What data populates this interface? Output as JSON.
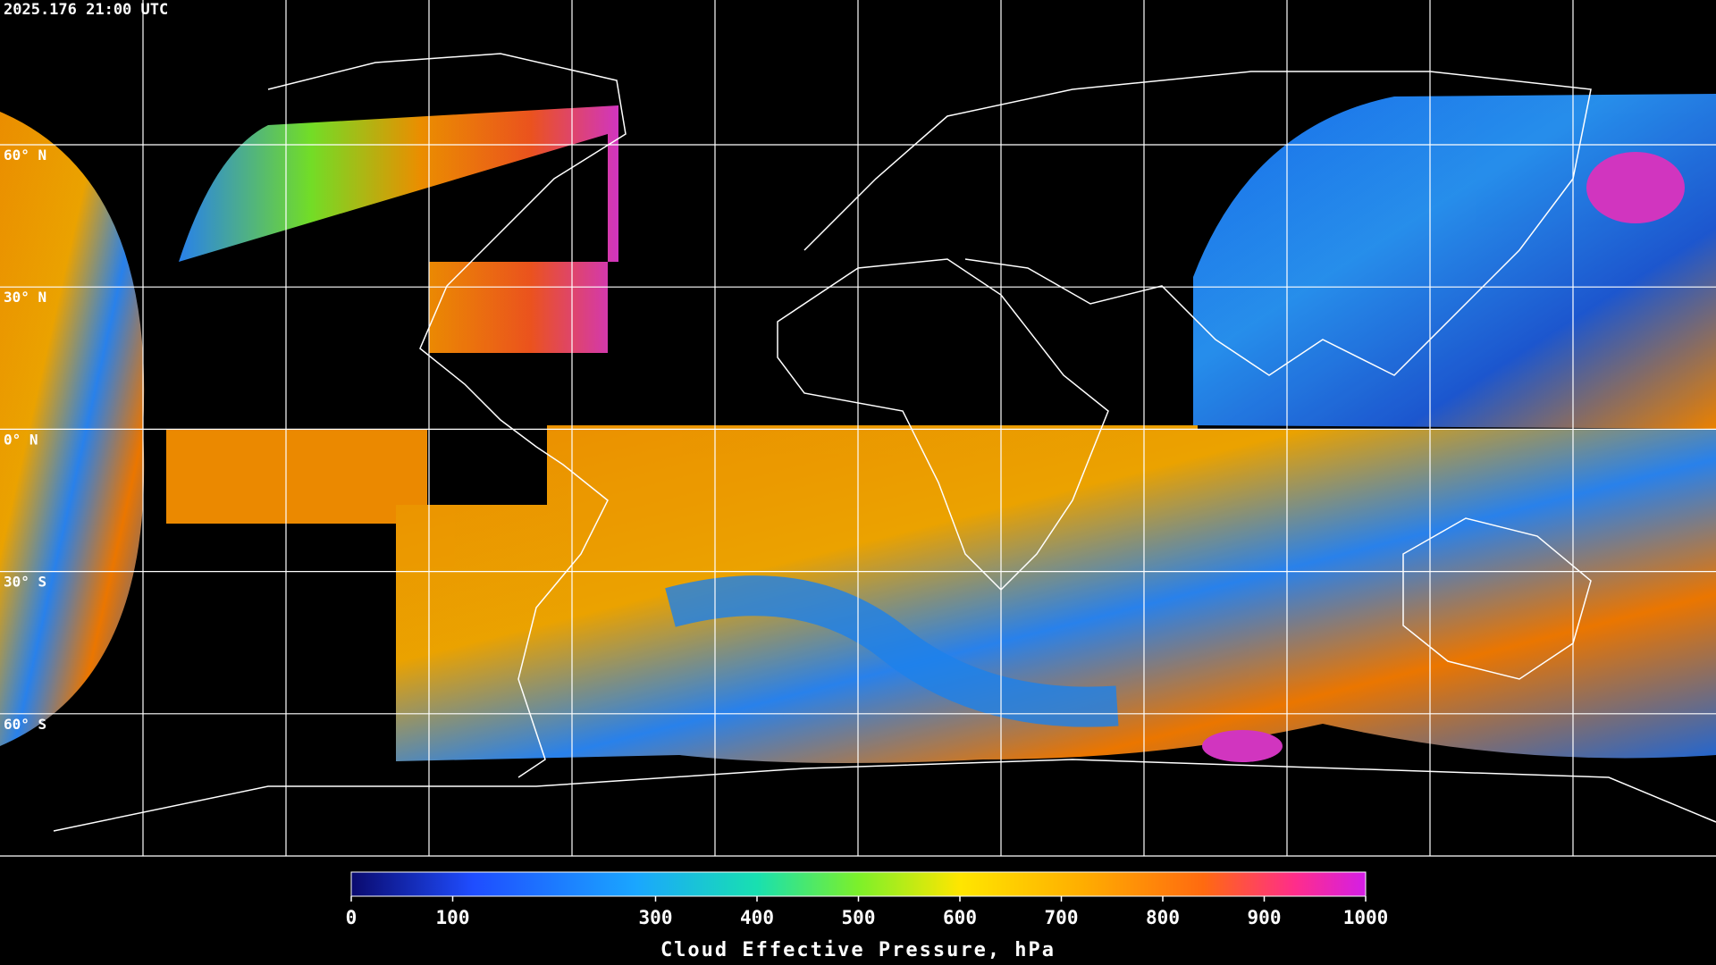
{
  "timestamp": "2025.176 21:00 UTC",
  "latitude_labels": [
    "60° N",
    "30° N",
    "0° N",
    "30° S",
    "60° S"
  ],
  "colorbar": {
    "label": "Cloud Effective Pressure, hPa",
    "range": [
      0,
      1000
    ],
    "ticks": [
      0,
      100,
      300,
      400,
      500,
      600,
      700,
      800,
      900,
      1000
    ]
  }
}
